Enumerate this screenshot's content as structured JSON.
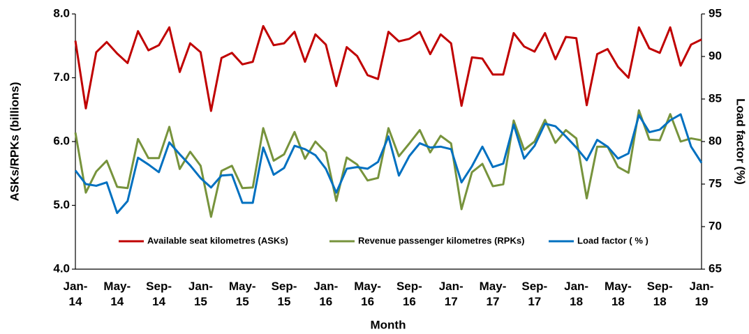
{
  "chart_data": {
    "type": "line",
    "x_label": "Month",
    "y_label": "ASKs/RPKs (billions)",
    "y2_label": "Load factor (%)",
    "categories": [
      "Jan-14",
      null,
      null,
      null,
      "May-14",
      null,
      null,
      null,
      "Sep-14",
      null,
      null,
      null,
      "Jan-15",
      null,
      null,
      null,
      "May-15",
      null,
      null,
      null,
      "Sep-15",
      null,
      null,
      null,
      "Jan-16",
      null,
      null,
      null,
      "May-16",
      null,
      null,
      null,
      "Sep-16",
      null,
      null,
      null,
      "Jan-17",
      null,
      null,
      null,
      "May-17",
      null,
      null,
      null,
      "Sep-17",
      null,
      null,
      null,
      "Jan-18",
      null,
      null,
      null,
      "May-18",
      null,
      null,
      null,
      "Sep-18",
      null,
      null,
      null,
      "Jan-19"
    ],
    "ylim": [
      4,
      8
    ],
    "yticks": [
      {
        "value": 4,
        "label": "4.0"
      },
      {
        "value": 5,
        "label": "5.0"
      },
      {
        "value": 6,
        "label": "6.0"
      },
      {
        "value": 7,
        "label": "7.0"
      },
      {
        "value": 8,
        "label": "8.0"
      }
    ],
    "y2lim": [
      65,
      95
    ],
    "y2ticks": [
      65,
      70,
      75,
      80,
      85,
      90,
      95
    ],
    "grid": false,
    "legend": "bottom",
    "series": [
      {
        "name": "Available seat kilometres (ASKs)",
        "color": "#c00000",
        "values": [
          7.58,
          6.52,
          7.4,
          7.56,
          7.38,
          7.23,
          7.73,
          7.43,
          7.51,
          7.79,
          7.09,
          7.54,
          7.4,
          6.48,
          7.31,
          7.39,
          7.21,
          7.25,
          7.81,
          7.51,
          7.54,
          7.72,
          7.25,
          7.68,
          7.52,
          6.87,
          7.48,
          7.34,
          7.04,
          6.98,
          7.72,
          7.57,
          7.61,
          7.72,
          7.37,
          7.68,
          7.54,
          6.56,
          7.32,
          7.3,
          7.05,
          7.05,
          7.7,
          7.49,
          7.41,
          7.7,
          7.29,
          7.64,
          7.62,
          6.57,
          7.37,
          7.45,
          7.17,
          7.0,
          7.79,
          7.46,
          7.39,
          7.79,
          7.19,
          7.52,
          7.6
        ]
      },
      {
        "name": "Revenue passenger kilometres (RPKs)",
        "color": "#77933c",
        "values": [
          6.14,
          5.2,
          5.53,
          5.7,
          5.29,
          5.27,
          6.04,
          5.74,
          5.74,
          6.23,
          5.57,
          5.84,
          5.62,
          4.82,
          5.54,
          5.62,
          5.27,
          5.28,
          6.21,
          5.7,
          5.8,
          6.15,
          5.73,
          6.0,
          5.83,
          5.07,
          5.75,
          5.64,
          5.39,
          5.43,
          6.21,
          5.77,
          5.97,
          6.18,
          5.83,
          6.09,
          5.97,
          4.94,
          5.52,
          5.65,
          5.3,
          5.33,
          6.33,
          5.87,
          6.0,
          6.34,
          5.98,
          6.18,
          6.05,
          5.11,
          5.92,
          5.92,
          5.6,
          5.51,
          6.49,
          6.03,
          6.02,
          6.43,
          6.0,
          6.05,
          6.02
        ]
      },
      {
        "name": "Load factor ( % )",
        "color": "#0070c0",
        "axis": "y2",
        "values": [
          76.6,
          75.0,
          74.8,
          75.2,
          71.6,
          73.0,
          78.1,
          77.3,
          76.4,
          79.9,
          78.5,
          77.2,
          75.7,
          74.6,
          76.0,
          76.1,
          72.8,
          72.8,
          79.3,
          76.1,
          76.9,
          79.5,
          79.1,
          78.4,
          76.8,
          74.0,
          76.8,
          77.0,
          76.8,
          77.6,
          80.6,
          76.0,
          78.3,
          79.8,
          79.3,
          79.4,
          79.1,
          75.2,
          77.1,
          79.4,
          77.0,
          77.4,
          82.0,
          78.0,
          79.5,
          82.1,
          81.8,
          80.6,
          79.3,
          77.8,
          80.2,
          79.4,
          78.0,
          78.6,
          83.1,
          81.1,
          81.4,
          82.5,
          83.2,
          79.4,
          77.5
        ]
      }
    ]
  }
}
